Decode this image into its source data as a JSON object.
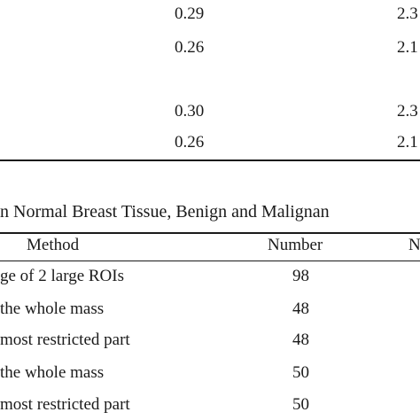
{
  "top_table": {
    "rows": [
      {
        "col_a": "0.29",
        "col_b": "2.3"
      },
      {
        "col_a": "0.26",
        "col_b": "2.1"
      },
      {
        "col_a": "0.30",
        "col_b": "2.3"
      },
      {
        "col_a": "0.26",
        "col_b": "2.1"
      }
    ]
  },
  "caption": "n Normal Breast Tissue, Benign and Malignan",
  "bottom_table": {
    "headers": {
      "method": "Method",
      "number": "Number",
      "partial": "N"
    },
    "rows": [
      {
        "method": "ge of 2 large ROIs",
        "number": "98"
      },
      {
        "method": "the whole mass",
        "number": "48"
      },
      {
        "method": "most restricted part",
        "number": "48"
      },
      {
        "method": "the whole mass",
        "number": "50"
      },
      {
        "method": "most restricted part",
        "number": "50"
      }
    ]
  }
}
